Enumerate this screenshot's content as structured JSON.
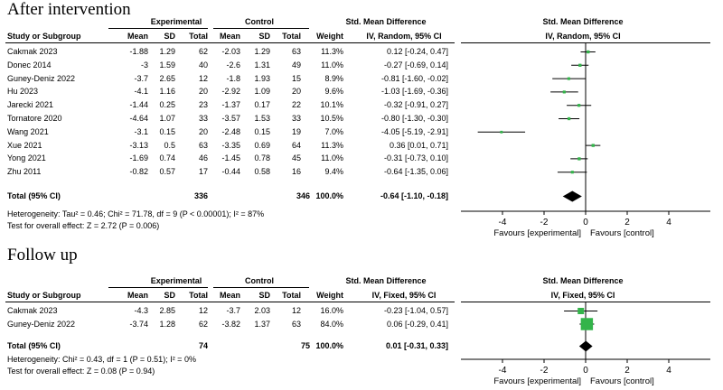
{
  "chart_data": [
    {
      "type": "forest",
      "title": "After intervention",
      "columns": {
        "group1": "Experimental",
        "group2": "Control",
        "smd": "Std. Mean Difference",
        "study": "Study or Subgroup",
        "mean": "Mean",
        "sd": "SD",
        "total": "Total",
        "weight": "Weight",
        "method": "IV, Random, 95% CI"
      },
      "studies": [
        {
          "name": "Cakmak 2023",
          "e_mean": "-1.88",
          "e_sd": "1.29",
          "e_total": "62",
          "c_mean": "-2.03",
          "c_sd": "1.29",
          "c_total": "63",
          "weight": "11.3%",
          "ci_text": "0.12 [-0.24, 0.47]",
          "est": 0.12,
          "lo": -0.24,
          "hi": 0.47,
          "w": 11.3
        },
        {
          "name": "Donec 2014",
          "e_mean": "-3",
          "e_sd": "1.59",
          "e_total": "40",
          "c_mean": "-2.6",
          "c_sd": "1.31",
          "c_total": "49",
          "weight": "11.0%",
          "ci_text": "-0.27 [-0.69, 0.14]",
          "est": -0.27,
          "lo": -0.69,
          "hi": 0.14,
          "w": 11.0
        },
        {
          "name": "Guney-Deniz 2022",
          "e_mean": "-3.7",
          "e_sd": "2.65",
          "e_total": "12",
          "c_mean": "-1.8",
          "c_sd": "1.93",
          "c_total": "15",
          "weight": "8.9%",
          "ci_text": "-0.81 [-1.60, -0.02]",
          "est": -0.81,
          "lo": -1.6,
          "hi": -0.02,
          "w": 8.9
        },
        {
          "name": "Hu 2023",
          "e_mean": "-4.1",
          "e_sd": "1.16",
          "e_total": "20",
          "c_mean": "-2.92",
          "c_sd": "1.09",
          "c_total": "20",
          "weight": "9.6%",
          "ci_text": "-1.03 [-1.69, -0.36]",
          "est": -1.03,
          "lo": -1.69,
          "hi": -0.36,
          "w": 9.6
        },
        {
          "name": "Jarecki 2021",
          "e_mean": "-1.44",
          "e_sd": "0.25",
          "e_total": "23",
          "c_mean": "-1.37",
          "c_sd": "0.17",
          "c_total": "22",
          "weight": "10.1%",
          "ci_text": "-0.32 [-0.91, 0.27]",
          "est": -0.32,
          "lo": -0.91,
          "hi": 0.27,
          "w": 10.1
        },
        {
          "name": "Tornatore 2020",
          "e_mean": "-4.64",
          "e_sd": "1.07",
          "e_total": "33",
          "c_mean": "-3.57",
          "c_sd": "1.53",
          "c_total": "33",
          "weight": "10.5%",
          "ci_text": "-0.80 [-1.30, -0.30]",
          "est": -0.8,
          "lo": -1.3,
          "hi": -0.3,
          "w": 10.5
        },
        {
          "name": "Wang 2021",
          "e_mean": "-3.1",
          "e_sd": "0.15",
          "e_total": "20",
          "c_mean": "-2.48",
          "c_sd": "0.15",
          "c_total": "19",
          "weight": "7.0%",
          "ci_text": "-4.05 [-5.19, -2.91]",
          "est": -4.05,
          "lo": -5.19,
          "hi": -2.91,
          "w": 7.0
        },
        {
          "name": "Xue 2021",
          "e_mean": "-3.13",
          "e_sd": "0.5",
          "e_total": "63",
          "c_mean": "-3.35",
          "c_sd": "0.69",
          "c_total": "64",
          "weight": "11.3%",
          "ci_text": "0.36 [0.01, 0.71]",
          "est": 0.36,
          "lo": 0.01,
          "hi": 0.71,
          "w": 11.3
        },
        {
          "name": "Yong 2021",
          "e_mean": "-1.69",
          "e_sd": "0.74",
          "e_total": "46",
          "c_mean": "-1.45",
          "c_sd": "0.78",
          "c_total": "45",
          "weight": "11.0%",
          "ci_text": "-0.31 [-0.73, 0.10]",
          "est": -0.31,
          "lo": -0.73,
          "hi": 0.1,
          "w": 11.0
        },
        {
          "name": "Zhu 2011",
          "e_mean": "-0.82",
          "e_sd": "0.57",
          "e_total": "17",
          "c_mean": "-0.44",
          "c_sd": "0.58",
          "c_total": "16",
          "weight": "9.4%",
          "ci_text": "-0.64 [-1.35, 0.06]",
          "est": -0.64,
          "lo": -1.35,
          "hi": 0.06,
          "w": 9.4
        }
      ],
      "total": {
        "label": "Total (95% CI)",
        "e_total": "336",
        "c_total": "346",
        "weight": "100.0%",
        "ci_text": "-0.64 [-1.10, -0.18]",
        "est": -0.64,
        "lo": -1.1,
        "hi": -0.18
      },
      "heterogeneity": "Heterogeneity: Tau² = 0.46; Chi² = 71.78, df = 9 (P < 0.00001); I² = 87%",
      "overall_test": "Test for overall effect: Z = 2.72 (P = 0.006)",
      "x_range": [
        -6,
        6
      ],
      "x_ticks": [
        -4,
        -2,
        0,
        2,
        4
      ],
      "x_tick_labels": [
        "-4",
        "-2",
        "0",
        "2",
        "4"
      ],
      "favours_left": "Favours [experimental]",
      "favours_right": "Favours [control]",
      "marker_color": "#33b44a"
    },
    {
      "type": "forest",
      "title": "Follow up",
      "columns": {
        "group1": "Experimental",
        "group2": "Control",
        "smd": "Std. Mean Difference",
        "study": "Study or Subgroup",
        "mean": "Mean",
        "sd": "SD",
        "total": "Total",
        "weight": "Weight",
        "method": "IV, Fixed, 95% CI"
      },
      "studies": [
        {
          "name": "Cakmak 2023",
          "e_mean": "-4.3",
          "e_sd": "2.85",
          "e_total": "12",
          "c_mean": "-3.7",
          "c_sd": "2.03",
          "c_total": "12",
          "weight": "16.0%",
          "ci_text": "-0.23 [-1.04, 0.57]",
          "est": -0.23,
          "lo": -1.04,
          "hi": 0.57,
          "w": 16.0
        },
        {
          "name": "Guney-Deniz 2022",
          "e_mean": "-3.74",
          "e_sd": "1.28",
          "e_total": "62",
          "c_mean": "-3.82",
          "c_sd": "1.37",
          "c_total": "63",
          "weight": "84.0%",
          "ci_text": "0.06 [-0.29, 0.41]",
          "est": 0.06,
          "lo": -0.29,
          "hi": 0.41,
          "w": 84.0
        }
      ],
      "total": {
        "label": "Total (95% CI)",
        "e_total": "74",
        "c_total": "75",
        "weight": "100.0%",
        "ci_text": "0.01 [-0.31, 0.33]",
        "est": 0.01,
        "lo": -0.31,
        "hi": 0.33
      },
      "heterogeneity": "Heterogeneity: Chi² = 0.43, df = 1 (P = 0.51); I² = 0%",
      "overall_test": "Test for overall effect: Z = 0.08 (P = 0.94)",
      "x_range": [
        -6,
        6
      ],
      "x_ticks": [
        -4,
        -2,
        0,
        2,
        4
      ],
      "x_tick_labels": [
        "-4",
        "-2",
        "0",
        "2",
        "4"
      ],
      "favours_left": "Favours [experimental]",
      "favours_right": "Favours [control]",
      "marker_color": "#33b44a"
    }
  ]
}
